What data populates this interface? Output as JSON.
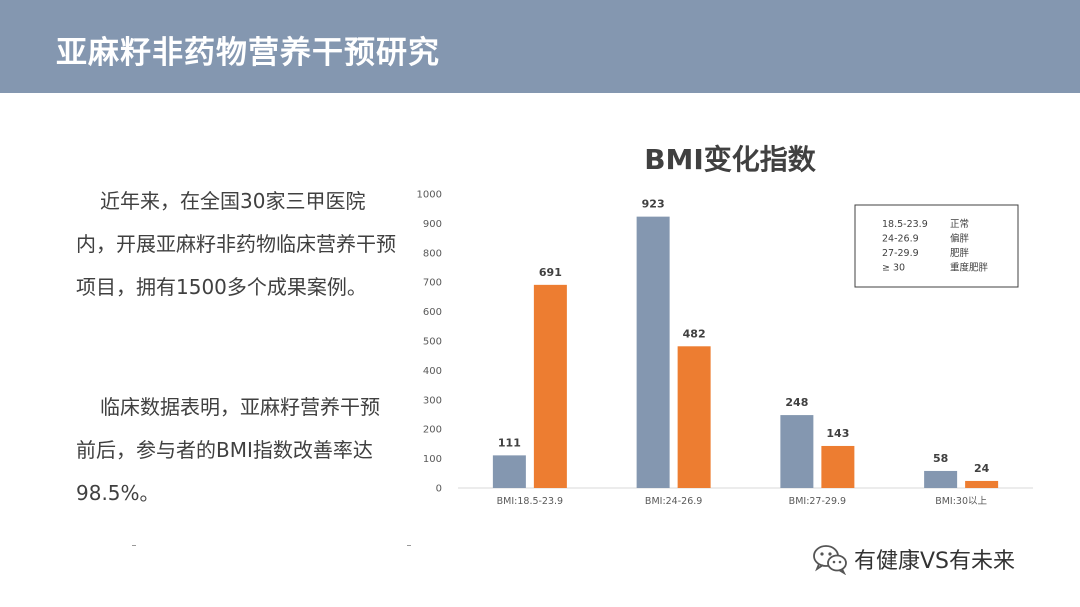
{
  "header": {
    "title": "亚麻籽非药物营养干预研究"
  },
  "text": {
    "para1": "近年来，在全国30家三甲医院内，开展亚麻籽非药物临床营养干预项目，拥有1500多个成果案例。",
    "para2": "临床数据表明，亚麻籽营养干预前后，参与者的BMI指数改善率达98.5%。"
  },
  "chart_data": {
    "type": "bar",
    "title": "BMI变化指数",
    "categories": [
      "BMI:18.5-23.9",
      "BMI:24-26.9",
      "BMI:27-29.9",
      "BMI:30以上"
    ],
    "series": [
      {
        "values": [
          111,
          923,
          248,
          58
        ],
        "color": "#8497b0"
      },
      {
        "values": [
          691,
          482,
          143,
          24
        ],
        "color": "#ed7d31"
      }
    ],
    "ylim": [
      0,
      1000
    ],
    "yticks": [
      "0",
      "100",
      "200",
      "300",
      "400",
      "500",
      "600",
      "700",
      "800",
      "900",
      "1000"
    ],
    "grid": false,
    "legend": {
      "placement": "top-right",
      "entries": [
        {
          "range": "18.5-23.9",
          "label": "正常"
        },
        {
          "range": "24-26.9",
          "label": "偏胖"
        },
        {
          "range": "27-29.9",
          "label": "肥胖"
        },
        {
          "range": "≥ 30",
          "label": "重度肥胖"
        }
      ]
    }
  },
  "watermark": {
    "text": "有健康VS有未来",
    "icon": "wechat-icon"
  },
  "colors": {
    "header": "#8497b0",
    "series_gray": "#8497b0",
    "series_orange": "#ed7d31"
  }
}
